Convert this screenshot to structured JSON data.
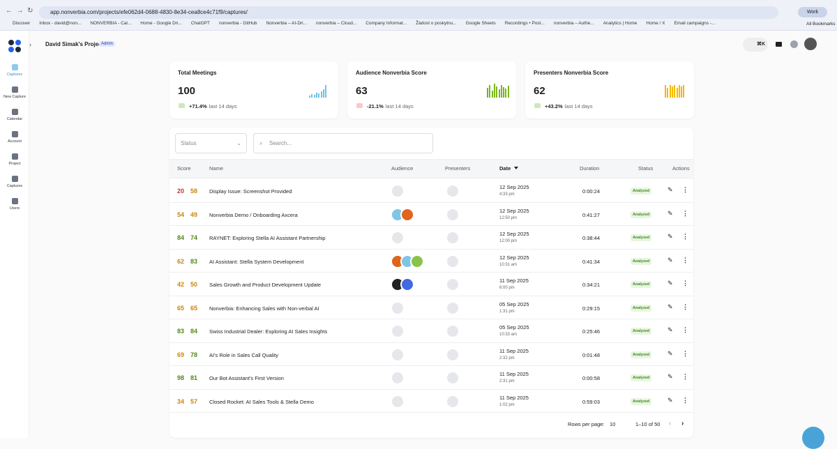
{
  "browser": {
    "url": "app.nonverbia.com/projects/efe062d4-0688-4830-8e34-cea8ce4c71f9/captures/",
    "profile": "Work",
    "all_bookmarks": "All Bookmarks",
    "bookmarks": [
      "Discover",
      "Inbox - david@non...",
      "NONVERBIA - Cal...",
      "Home - Google Dri...",
      "ChatGPT",
      "nonverbia - GitHub",
      "Nonverbia – AI-Dri...",
      "nonverbia – Cloud...",
      "Company Informat...",
      "Žádost o poskytnu...",
      "Google Sheets",
      "Recordings • Post...",
      "nonverbia – Authe...",
      "Analytics | Home",
      "Home / X",
      "Email campaigns -..."
    ]
  },
  "sidebar": [
    "Captures",
    "New Capture",
    "Calendar",
    "Account",
    "Project",
    "Captures",
    "Users"
  ],
  "header": {
    "project": "David Simak's Project",
    "role": "Admin",
    "shortcut": "⌘K"
  },
  "stats": [
    {
      "title": "Total Meetings",
      "value": "100",
      "change": "+71.4%",
      "period": "last 14 days"
    },
    {
      "title": "Audience Nonverbia Score",
      "value": "63",
      "change": "-21.1%",
      "period": "last 14 days"
    },
    {
      "title": "Presenters Nonverbia Score",
      "value": "62",
      "change": "+43.2%",
      "period": "last 14 days"
    }
  ],
  "filters": {
    "status": "Status",
    "search": "Search..."
  },
  "table": {
    "columns": [
      "Score",
      "Name",
      "Audience",
      "Presenters",
      "Date",
      "Duration",
      "Status",
      "Actions"
    ],
    "rows": [
      {
        "audience_score": 20,
        "presenter_score": 58,
        "name": "Display Issue: Screenshot Provided",
        "date": "12 Sep 2025",
        "time": "4:33 pm",
        "duration": "0:00:24",
        "status": "Analyzed"
      },
      {
        "audience_score": 54,
        "presenter_score": 49,
        "name": "Nonverbia Demo / Onboarding Axcera",
        "date": "12 Sep 2025",
        "time": "12:50 pm",
        "duration": "0:41:27",
        "status": "Analyzed"
      },
      {
        "audience_score": 84,
        "presenter_score": 74,
        "name": "RAYNET: Exploring Stella AI Assistant Partnership",
        "date": "12 Sep 2025",
        "time": "12:00 pm",
        "duration": "0:38:44",
        "status": "Analyzed"
      },
      {
        "audience_score": 62,
        "presenter_score": 83,
        "name": "AI Assistant: Stella System Development",
        "date": "12 Sep 2025",
        "time": "10:31 am",
        "duration": "0:41:34",
        "status": "Analyzed"
      },
      {
        "audience_score": 42,
        "presenter_score": 50,
        "name": "Sales Growth and Product Development Update",
        "date": "11 Sep 2025",
        "time": "6:00 pm",
        "duration": "0:34:21",
        "status": "Analyzed"
      },
      {
        "audience_score": 65,
        "presenter_score": 65,
        "name": "Nonverbia: Enhancing Sales with Non-verbal AI",
        "date": "05 Sep 2025",
        "time": "1:31 pm",
        "duration": "0:29:15",
        "status": "Analyzed"
      },
      {
        "audience_score": 83,
        "presenter_score": 84,
        "name": "Swiss Industrial Dealer: Exploring AI Sales Insights",
        "date": "05 Sep 2025",
        "time": "10:33 am",
        "duration": "0:25:46",
        "status": "Analyzed"
      },
      {
        "audience_score": 69,
        "presenter_score": 78,
        "name": "AI's Role in Sales Call Quality",
        "date": "11 Sep 2025",
        "time": "2:32 pm",
        "duration": "0:01:48",
        "status": "Analyzed"
      },
      {
        "audience_score": 98,
        "presenter_score": 81,
        "name": "Our Bot Assistant's First Version",
        "date": "11 Sep 2025",
        "time": "2:31 pm",
        "duration": "0:00:58",
        "status": "Analyzed"
      },
      {
        "audience_score": 34,
        "presenter_score": 57,
        "name": "Closed Rocket: AI Sales Tools & Stella Demo",
        "date": "11 Sep 2025",
        "time": "1:02 pm",
        "duration": "0:59:03",
        "status": "Analyzed"
      }
    ]
  },
  "pagination": {
    "label": "Rows per page:",
    "rows": "10",
    "range": "1–10 of 50"
  }
}
